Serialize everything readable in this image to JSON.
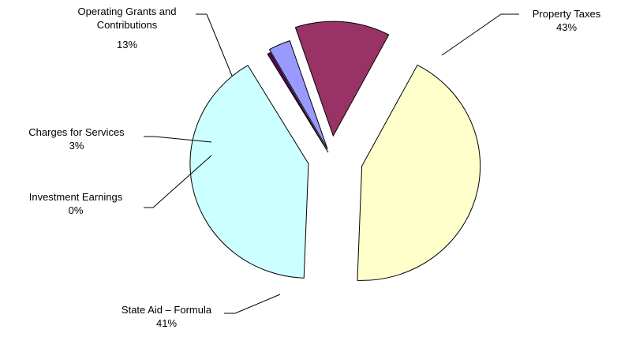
{
  "chart_data": {
    "type": "pie",
    "exploded": true,
    "slices": [
      {
        "label": "Property Taxes",
        "percent_label": "43%",
        "value": 43,
        "color": "#FFFFCC"
      },
      {
        "label": "State Aid – Formula",
        "percent_label": "41%",
        "value": 41,
        "color": "#CCFFFF"
      },
      {
        "label": "Investment Earnings",
        "percent_label": "0%",
        "value": 0.4,
        "color": "#660066"
      },
      {
        "label": "Charges for Services",
        "percent_label": "3%",
        "value": 3,
        "color": "#9999FF"
      },
      {
        "label": "Operating Grants and Contributions",
        "percent_label": "13%",
        "value": 13,
        "color": "#993366"
      }
    ]
  }
}
